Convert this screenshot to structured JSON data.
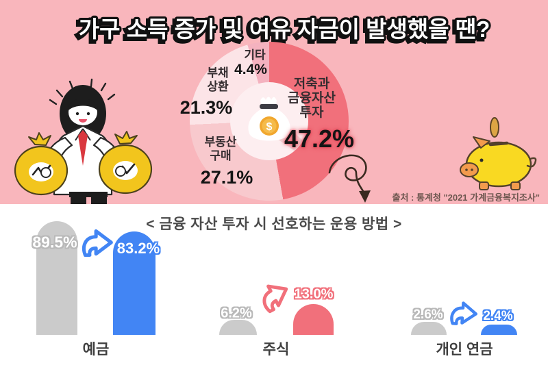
{
  "colors": {
    "background_pink": "#f9b6bc",
    "accent_blue": "#4285f4",
    "accent_red": "#f1707b",
    "bar_gray": "#cbcbcb",
    "pie_hole": "#fdeef0"
  },
  "header": {
    "title": "가구 소득 증가 및 여유 자금이 발생했을 땐?",
    "source": "출처 : 통계청 \"2021 가계금융복지조사\""
  },
  "pie": {
    "center_icon": "money-bag-icon",
    "segments": [
      {
        "label": "저축과 금융자산 투자",
        "label_lines": [
          "저축과",
          "금융자산",
          "투자"
        ],
        "text": "47.2%",
        "pct": 47.2,
        "color": "#f1707b"
      },
      {
        "label": "부동산 구매",
        "label_lines": [
          "부동산",
          "구매"
        ],
        "text": "27.1%",
        "pct": 27.1,
        "color": "#f8c9cd"
      },
      {
        "label": "부채 상환",
        "label_lines": [
          "부채",
          "상환"
        ],
        "text": "21.3%",
        "pct": 21.3,
        "color": "#fce4e7"
      },
      {
        "label": "기타",
        "label_lines": [
          "기타"
        ],
        "text": "4.4%",
        "pct": 4.4,
        "color": "#f4b2bf"
      }
    ]
  },
  "bottom": {
    "title": "< 금융 자산 투자 시 선호하는 운용 방법 >",
    "groups": [
      {
        "label": "예금",
        "before": {
          "text": "89.5%",
          "pct": 89.5,
          "color": "#cbcbcb"
        },
        "after": {
          "text": "83.2%",
          "pct": 83.2,
          "color": "#4285f4"
        }
      },
      {
        "label": "주식",
        "before": {
          "text": "6.2%",
          "pct": 6.2,
          "color": "#cbcbcb"
        },
        "after": {
          "text": "13.0%",
          "pct": 13.0,
          "color": "#f1707b"
        }
      },
      {
        "label": "개인 연금",
        "before": {
          "text": "2.6%",
          "pct": 2.6,
          "color": "#cbcbcb"
        },
        "after": {
          "text": "2.4%",
          "pct": 2.4,
          "color": "#4285f4"
        }
      }
    ]
  },
  "chart_data": [
    {
      "type": "pie",
      "title": "가구 소득 증가 및 여유 자금이 발생했을 땐?",
      "labels": [
        "저축과 금융자산 투자",
        "부동산 구매",
        "부채 상환",
        "기타"
      ],
      "values": [
        47.2,
        27.1,
        21.3,
        4.4
      ],
      "unit": "%",
      "donut": true,
      "start_angle": "12-oclock-clockwise",
      "source": "출처 : 통계청 \"2021 가계금융복지조사\""
    },
    {
      "type": "bar",
      "title": "< 금융 자산 투자 시 선호하는 운용 방법 >",
      "categories": [
        "예금",
        "주식",
        "개인 연금"
      ],
      "series": [
        {
          "name": "before",
          "values": [
            89.5,
            6.2,
            2.6
          ]
        },
        {
          "name": "after",
          "values": [
            83.2,
            13.0,
            2.4
          ]
        }
      ],
      "unit": "%",
      "note": "per-category arrow shows change from gray (before) to colored (after) bar"
    }
  ]
}
